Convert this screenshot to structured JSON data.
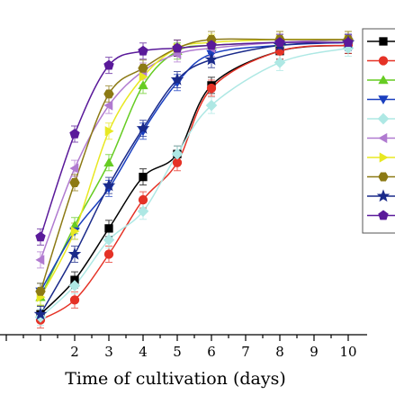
{
  "chart_data": {
    "type": "line",
    "title": "",
    "xlabel": "Time of cultivation (days)",
    "ylabel": "",
    "xlim": [
      0,
      10.5
    ],
    "ylim": [
      0,
      1
    ],
    "x_ticks": [
      "2",
      "3",
      "4",
      "5",
      "6",
      "7",
      "8",
      "9",
      "10"
    ],
    "grid": false,
    "legend_position": "right",
    "series": [
      {
        "marker": "square",
        "color": "#000000",
        "x": [
          1,
          2,
          3,
          4,
          5,
          6,
          8,
          10
        ],
        "y": [
          0.04,
          0.16,
          0.34,
          0.52,
          0.6,
          0.84,
          0.96,
          0.98
        ]
      },
      {
        "marker": "circle",
        "color": "#e53226",
        "x": [
          1,
          2,
          3,
          4,
          5,
          6,
          8,
          10
        ],
        "y": [
          0.02,
          0.09,
          0.25,
          0.44,
          0.57,
          0.83,
          0.96,
          0.98
        ]
      },
      {
        "marker": "triangle-up",
        "color": "#66cc22",
        "x": [
          1,
          2,
          3,
          4,
          5,
          6,
          8,
          10
        ],
        "y": [
          0.1,
          0.35,
          0.57,
          0.84,
          0.96,
          0.98,
          0.99,
          1.0
        ]
      },
      {
        "marker": "triangle-down",
        "color": "#1a3fbf",
        "x": [
          1,
          2,
          3,
          4,
          5,
          6,
          8,
          10
        ],
        "y": [
          0.12,
          0.33,
          0.48,
          0.68,
          0.85,
          0.95,
          0.98,
          0.99
        ]
      },
      {
        "marker": "diamond",
        "color": "#aee8e4",
        "x": [
          1,
          2,
          3,
          4,
          5,
          6,
          8,
          10
        ],
        "y": [
          0.03,
          0.14,
          0.3,
          0.4,
          0.6,
          0.77,
          0.92,
          0.97
        ]
      },
      {
        "marker": "triangle-left",
        "color": "#b07ad0",
        "x": [
          1,
          2,
          3,
          4,
          5,
          6,
          8,
          10
        ],
        "y": [
          0.23,
          0.55,
          0.77,
          0.89,
          0.95,
          0.97,
          0.99,
          1.0
        ]
      },
      {
        "marker": "triangle-right",
        "color": "#e8e822",
        "x": [
          1,
          2,
          3,
          4,
          5,
          6,
          8,
          10
        ],
        "y": [
          0.1,
          0.33,
          0.68,
          0.87,
          0.97,
          0.99,
          1.0,
          1.0
        ]
      },
      {
        "marker": "hexagon",
        "color": "#8c7a14",
        "x": [
          1,
          2,
          3,
          4,
          5,
          6,
          8,
          10
        ],
        "y": [
          0.12,
          0.5,
          0.81,
          0.9,
          0.97,
          1.0,
          1.0,
          1.0
        ]
      },
      {
        "marker": "star",
        "color": "#1a2a8a",
        "x": [
          1,
          2,
          3,
          4,
          5,
          6,
          8,
          10
        ],
        "y": [
          0.04,
          0.25,
          0.49,
          0.69,
          0.86,
          0.93,
          0.98,
          0.99
        ]
      },
      {
        "marker": "pentagon",
        "color": "#5a1a9a",
        "x": [
          1,
          2,
          3,
          4,
          5,
          6,
          8,
          10
        ],
        "y": [
          0.31,
          0.67,
          0.91,
          0.96,
          0.97,
          0.98,
          0.99,
          0.99
        ]
      }
    ]
  }
}
